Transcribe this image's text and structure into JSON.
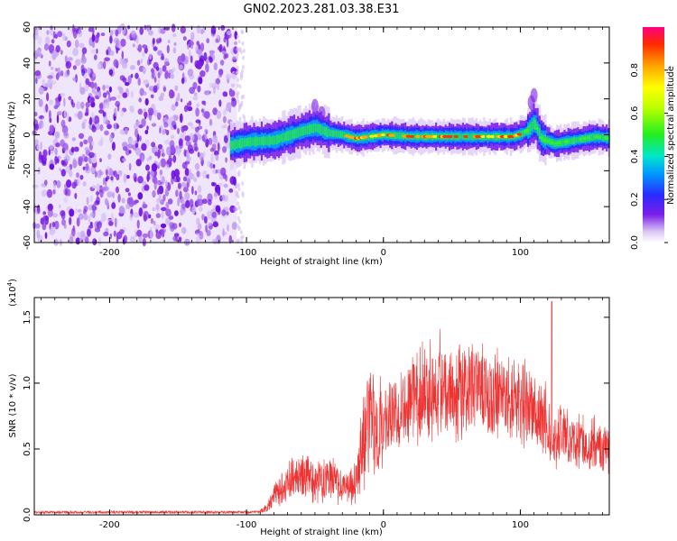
{
  "title": "GN02.2023.281.03.38.E31",
  "colorbar": {
    "label": "Normalized spectral amplitude",
    "ticks": [
      0.0,
      0.2,
      0.4,
      0.6,
      0.8
    ],
    "tick_labels": [
      "0.0",
      "0.2",
      "0.4",
      "0.6",
      "0.8"
    ]
  },
  "chart_data": [
    {
      "type": "heatmap",
      "xlabel": "Height of straight line (km)",
      "ylabel": "Frequency (Hz)",
      "xlim": [
        -255,
        165
      ],
      "ylim": [
        -60,
        60
      ],
      "x_ticks": [
        -200,
        -100,
        0,
        100
      ],
      "x_tick_labels": [
        "-200",
        "-100",
        "0",
        "100"
      ],
      "y_ticks": [
        -60,
        -40,
        -20,
        0,
        20,
        40,
        60
      ],
      "y_tick_labels": [
        "-60",
        "-40",
        "-20",
        "0",
        "20",
        "40",
        "60"
      ],
      "value_range": [
        0,
        1
      ],
      "ridge": {
        "x": [
          -112,
          -100,
          -80,
          -60,
          -50,
          -40,
          -30,
          -20,
          -10,
          0,
          20,
          40,
          60,
          80,
          95,
          102,
          106,
          110,
          115,
          125,
          140,
          155,
          165
        ],
        "freq": [
          -6,
          -4,
          -3,
          2,
          4,
          1,
          0,
          -2,
          -1,
          0,
          -1,
          -1,
          -1,
          -1,
          -1,
          1,
          3,
          7,
          -2,
          -5,
          -3,
          -1,
          -2
        ]
      },
      "noise_region_x": [
        -255,
        -107
      ]
    },
    {
      "type": "line",
      "xlabel": "Height of straight line (km)",
      "ylabel": "SNR (10 * v/v)",
      "y_multiplier_label": "(x10",
      "y_multiplier_exp": "4",
      "y_multiplier_close": ")",
      "xlim": [
        -255,
        165
      ],
      "ylim": [
        0,
        1.65
      ],
      "x_ticks": [
        -200,
        -100,
        0,
        100
      ],
      "x_tick_labels": [
        "-200",
        "-100",
        "0",
        "100"
      ],
      "y_ticks": [
        0.0,
        0.5,
        1.0,
        1.5
      ],
      "y_tick_labels": [
        "0.0",
        "0.5",
        "1.0",
        "1.5"
      ],
      "series_color": "#ee3333",
      "envelope": {
        "x": [
          -255,
          -100,
          -90,
          -85,
          -80,
          -70,
          -60,
          -50,
          -40,
          -30,
          -20,
          -15,
          -10,
          -5,
          0,
          10,
          20,
          30,
          40,
          50,
          60,
          80,
          100,
          110,
          120,
          125,
          130,
          140,
          150,
          165
        ],
        "mean": [
          0.0,
          0.0,
          0.03,
          0.05,
          0.15,
          0.25,
          0.3,
          0.25,
          0.3,
          0.2,
          0.25,
          0.55,
          0.75,
          0.6,
          0.7,
          0.8,
          0.9,
          0.95,
          1.0,
          0.98,
          0.95,
          0.9,
          0.85,
          0.8,
          0.7,
          0.55,
          0.65,
          0.55,
          0.55,
          0.5
        ]
      },
      "spike": {
        "x": 123,
        "y": 1.62
      }
    }
  ]
}
